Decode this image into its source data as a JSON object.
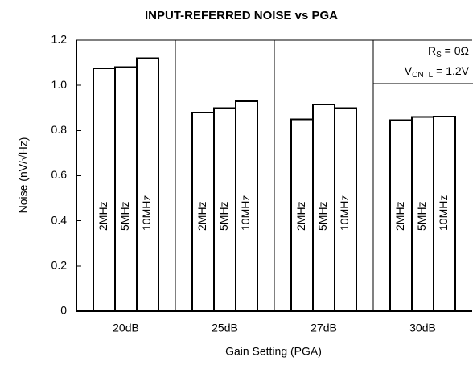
{
  "chart_data": {
    "type": "bar",
    "title": "INPUT-REFERRED NOISE vs PGA",
    "xlabel": "Gain Setting (PGA)",
    "ylabel": "Noise (nV/√Hz)",
    "categories": [
      "20dB",
      "25dB",
      "27dB",
      "30dB"
    ],
    "series": [
      {
        "name": "2MHz",
        "color": "#ffffff",
        "values": [
          1.075,
          0.88,
          0.85,
          0.845
        ]
      },
      {
        "name": "5MHz",
        "color": "#ffffff",
        "values": [
          1.08,
          0.9,
          0.915,
          0.86
        ]
      },
      {
        "name": "10MHz",
        "color": "#ffffff",
        "values": [
          1.12,
          0.93,
          0.9,
          0.862
        ]
      }
    ],
    "ylim": [
      0,
      1.2
    ],
    "yticks": [
      0,
      0.2,
      0.4,
      0.6,
      {
        "value": 0.8,
        "label": "0.8"
      },
      {
        "value": 1,
        "label": "1.0"
      },
      1.2
    ],
    "annotations": [
      {
        "main": "R",
        "sub": "S",
        "rest": " = 0Ω"
      },
      {
        "main": "V",
        "sub": "CNTL",
        "rest": " = 1.2V"
      }
    ]
  }
}
